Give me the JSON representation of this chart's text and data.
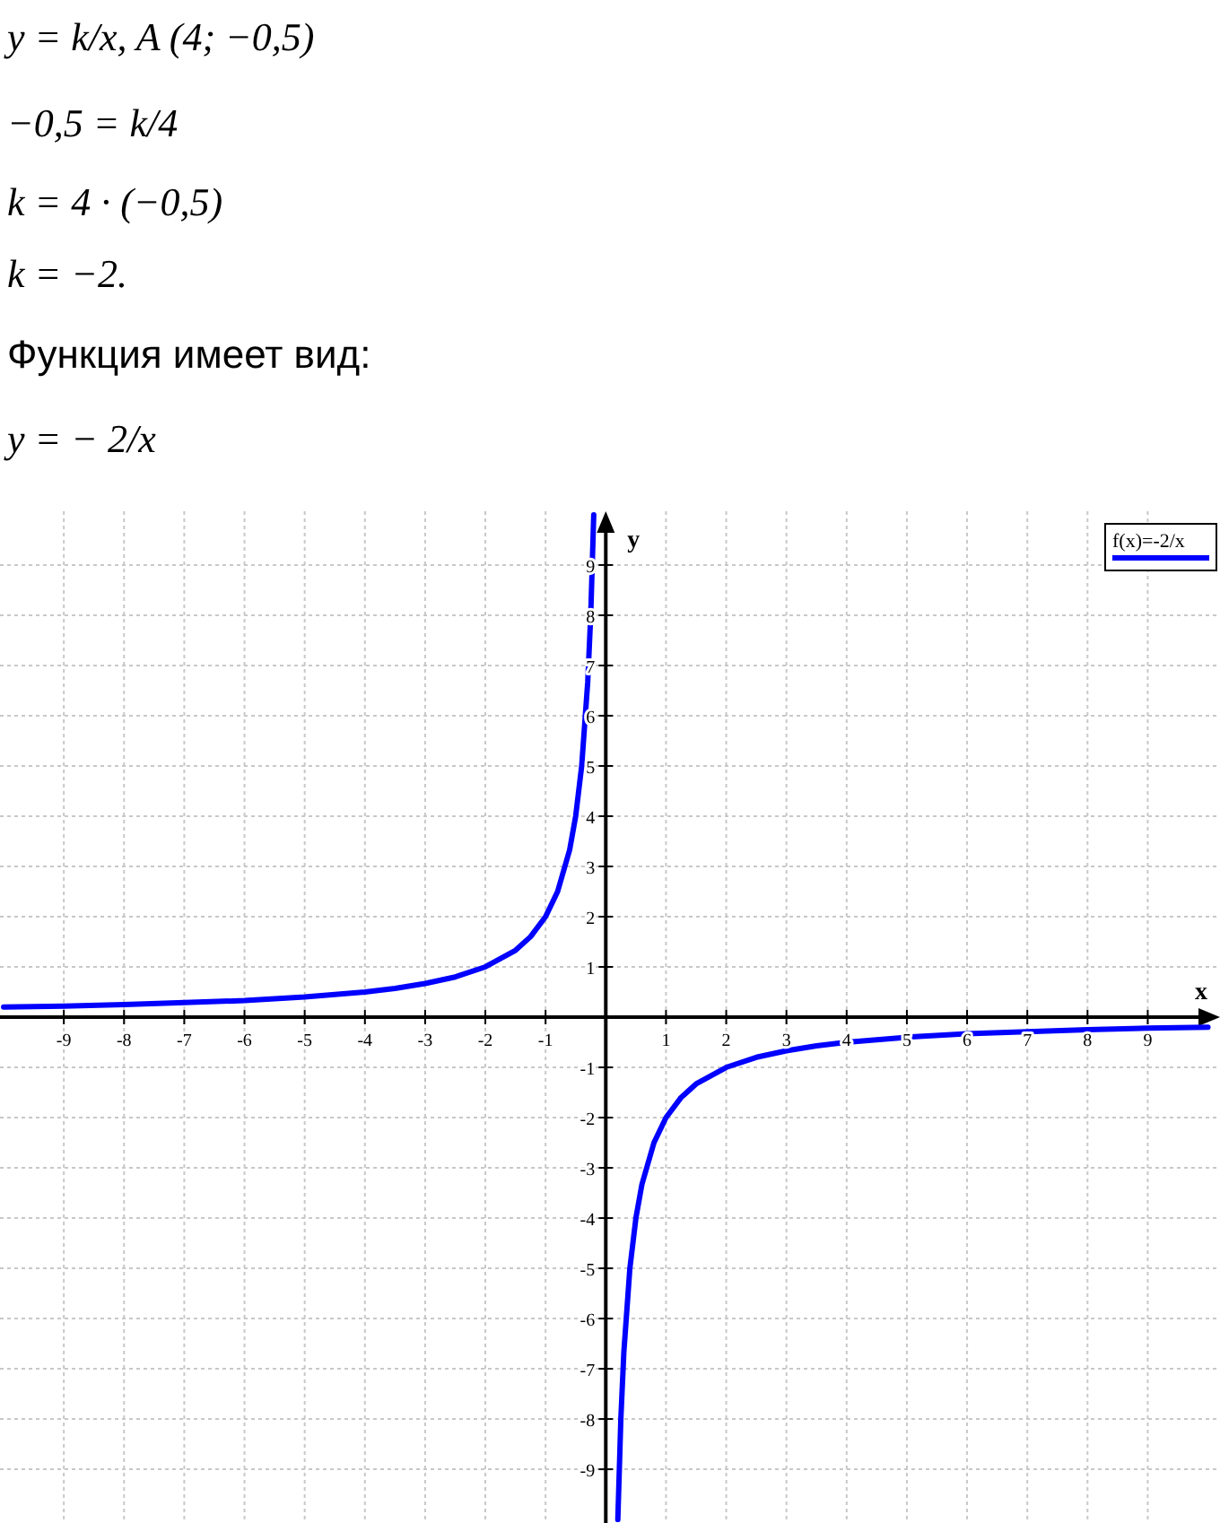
{
  "chart_data": {
    "type": "line",
    "xlabel": "x",
    "ylabel": "y",
    "annotations": [
      "y = k/x,        A (4;  −0,5)",
      "−0,5 = k/4",
      "k = 4 · (−0,5)",
      "k = −2.",
      "Функция имеет вид:",
      "y = − 2/x"
    ],
    "x": [
      -10,
      -9,
      -8,
      -7,
      -6,
      -5,
      -4,
      -3.5,
      -3,
      -2.5,
      -2,
      -1.5,
      -1.25,
      -1,
      -0.8,
      -0.6,
      -0.5,
      -0.4,
      -0.3,
      -0.25,
      -0.2,
      0,
      0.2,
      0.25,
      0.3,
      0.4,
      0.5,
      0.6,
      0.8,
      1,
      1.25,
      1.5,
      2,
      2.5,
      3,
      3.5,
      4,
      5,
      6,
      7,
      8,
      9,
      10
    ],
    "series": [
      {
        "name": "f(x)=-2/x",
        "color": "#0000ff",
        "values": [
          0.2,
          0.22,
          0.25,
          0.29,
          0.33,
          0.4,
          0.5,
          0.57,
          0.67,
          0.8,
          1,
          1.33,
          1.6,
          2,
          2.5,
          3.33,
          4,
          5,
          6.67,
          8,
          10,
          null,
          -10,
          -8,
          -6.67,
          -5,
          -4,
          -3.33,
          -2.5,
          -2,
          -1.6,
          -1.33,
          -1,
          -0.8,
          -0.67,
          -0.57,
          -0.5,
          -0.4,
          -0.33,
          -0.29,
          -0.25,
          -0.22,
          -0.2
        ]
      }
    ],
    "xlim": [
      -10.06,
      10.2
    ],
    "ylim": [
      -10.07,
      10.07
    ],
    "xticks": [
      -9,
      -8,
      -7,
      -6,
      -5,
      -4,
      -3,
      -2,
      -1,
      1,
      2,
      3,
      4,
      5,
      6,
      7,
      8,
      9
    ],
    "yticks": [
      -9,
      -8,
      -7,
      -6,
      -5,
      -4,
      -3,
      -2,
      -1,
      1,
      2,
      3,
      4,
      5,
      6,
      7,
      8,
      9
    ],
    "grid": true,
    "legend": "top right",
    "marker": "none",
    "line_style": "solid"
  }
}
